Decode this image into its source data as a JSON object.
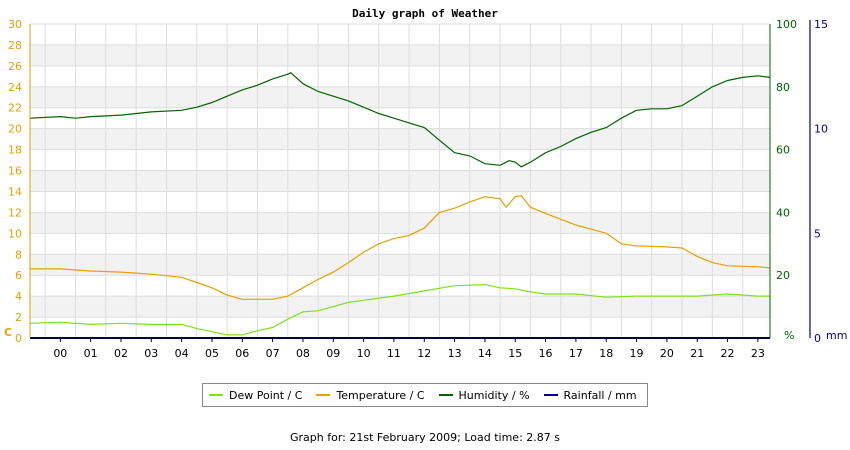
{
  "chart_data": {
    "type": "line",
    "title": "Daily graph of Weather",
    "x_ticks": [
      "00",
      "01",
      "02",
      "03",
      "04",
      "05",
      "06",
      "07",
      "08",
      "09",
      "10",
      "11",
      "12",
      "13",
      "14",
      "15",
      "16",
      "17",
      "18",
      "19",
      "20",
      "21",
      "22",
      "23"
    ],
    "xlim": [
      -1,
      23.4
    ],
    "left_axis": {
      "ticks": [
        0,
        2,
        4,
        6,
        8,
        10,
        12,
        14,
        16,
        18,
        20,
        22,
        24,
        26,
        28,
        30
      ],
      "range": [
        0,
        30
      ],
      "unit": "C",
      "color": "#e6a100"
    },
    "right_axis_humidity": {
      "ticks": [
        0,
        20,
        40,
        60,
        80,
        100
      ],
      "range": [
        0,
        100
      ],
      "unit": "%",
      "color": "#006400"
    },
    "right_axis_rain": {
      "ticks": [
        0,
        5,
        10,
        15
      ],
      "range": [
        0,
        15
      ],
      "unit": "mm",
      "color": "#00008b"
    },
    "grid": true,
    "legend_position": "bottom",
    "series": [
      {
        "name": "Dew Point / C",
        "axis": "C",
        "color": "#7ee21c",
        "points": [
          [
            -1,
            1.4
          ],
          [
            0,
            1.5
          ],
          [
            1,
            1.3
          ],
          [
            2,
            1.4
          ],
          [
            3,
            1.3
          ],
          [
            4,
            1.3
          ],
          [
            4.5,
            0.9
          ],
          [
            5,
            0.6
          ],
          [
            5.5,
            0.3
          ],
          [
            6,
            0.3
          ],
          [
            6.5,
            0.7
          ],
          [
            7,
            1.0
          ],
          [
            7.5,
            1.8
          ],
          [
            8,
            2.5
          ],
          [
            8.5,
            2.6
          ],
          [
            9,
            3.0
          ],
          [
            9.5,
            3.4
          ],
          [
            10,
            3.6
          ],
          [
            11,
            4.0
          ],
          [
            12,
            4.5
          ],
          [
            13,
            5.0
          ],
          [
            14,
            5.1
          ],
          [
            14.5,
            4.8
          ],
          [
            15,
            4.7
          ],
          [
            15.5,
            4.4
          ],
          [
            16,
            4.2
          ],
          [
            17,
            4.2
          ],
          [
            18,
            3.9
          ],
          [
            19,
            4.0
          ],
          [
            20,
            4.0
          ],
          [
            21,
            4.0
          ],
          [
            22,
            4.2
          ],
          [
            23,
            4.0
          ],
          [
            23.4,
            4.0
          ]
        ]
      },
      {
        "name": "Temperature / C",
        "axis": "C",
        "color": "#e6a100",
        "points": [
          [
            -1,
            6.6
          ],
          [
            0,
            6.6
          ],
          [
            1,
            6.4
          ],
          [
            2,
            6.3
          ],
          [
            3,
            6.1
          ],
          [
            4,
            5.8
          ],
          [
            4.5,
            5.3
          ],
          [
            5,
            4.8
          ],
          [
            5.5,
            4.1
          ],
          [
            6,
            3.7
          ],
          [
            7,
            3.7
          ],
          [
            7.5,
            4.0
          ],
          [
            8,
            4.8
          ],
          [
            8.5,
            5.6
          ],
          [
            9,
            6.3
          ],
          [
            9.5,
            7.2
          ],
          [
            10,
            8.2
          ],
          [
            10.5,
            9.0
          ],
          [
            11,
            9.5
          ],
          [
            11.5,
            9.8
          ],
          [
            12,
            10.5
          ],
          [
            12.5,
            12.0
          ],
          [
            13,
            12.4
          ],
          [
            13.5,
            13.0
          ],
          [
            14,
            13.5
          ],
          [
            14.5,
            13.3
          ],
          [
            14.7,
            12.5
          ],
          [
            15,
            13.5
          ],
          [
            15.2,
            13.6
          ],
          [
            15.5,
            12.5
          ],
          [
            16,
            11.9
          ],
          [
            17,
            10.8
          ],
          [
            18,
            10.0
          ],
          [
            18.5,
            9.0
          ],
          [
            19,
            8.8
          ],
          [
            20,
            8.7
          ],
          [
            20.5,
            8.6
          ],
          [
            21,
            7.8
          ],
          [
            21.5,
            7.2
          ],
          [
            22,
            6.9
          ],
          [
            23,
            6.8
          ],
          [
            23.4,
            6.7
          ]
        ]
      },
      {
        "name": "Humidity / %",
        "axis": "%",
        "color": "#006400",
        "points": [
          [
            -1,
            70
          ],
          [
            0,
            70.5
          ],
          [
            0.5,
            70
          ],
          [
            1,
            70.5
          ],
          [
            2,
            71
          ],
          [
            3,
            72
          ],
          [
            4,
            72.5
          ],
          [
            4.5,
            73.5
          ],
          [
            5,
            75
          ],
          [
            5.5,
            77
          ],
          [
            6,
            79
          ],
          [
            6.5,
            80.5
          ],
          [
            7,
            82.5
          ],
          [
            7.5,
            84
          ],
          [
            7.6,
            84.5
          ],
          [
            8,
            81
          ],
          [
            8.5,
            78.5
          ],
          [
            9,
            77
          ],
          [
            9.5,
            75.5
          ],
          [
            10,
            73.5
          ],
          [
            10.5,
            71.5
          ],
          [
            11,
            70
          ],
          [
            11.5,
            68.5
          ],
          [
            12,
            67
          ],
          [
            12.5,
            63
          ],
          [
            13,
            59
          ],
          [
            13.5,
            58
          ],
          [
            14,
            55.5
          ],
          [
            14.5,
            55
          ],
          [
            14.8,
            56.5
          ],
          [
            15,
            56
          ],
          [
            15.2,
            54.5
          ],
          [
            15.5,
            56
          ],
          [
            16,
            59
          ],
          [
            16.5,
            61
          ],
          [
            17,
            63.5
          ],
          [
            17.5,
            65.5
          ],
          [
            18,
            67
          ],
          [
            18.5,
            70
          ],
          [
            19,
            72.5
          ],
          [
            19.5,
            73
          ],
          [
            20,
            73
          ],
          [
            20.5,
            74
          ],
          [
            21,
            77
          ],
          [
            21.5,
            80
          ],
          [
            22,
            82
          ],
          [
            22.5,
            83
          ],
          [
            23,
            83.5
          ],
          [
            23.4,
            83
          ]
        ]
      },
      {
        "name": "Rainfall / mm",
        "axis": "mm",
        "color": "#00008b",
        "points": [
          [
            -1,
            0
          ],
          [
            23.4,
            0
          ]
        ]
      }
    ]
  },
  "footer": "Graph for: 21st February 2009; Load time: 2.87 s"
}
